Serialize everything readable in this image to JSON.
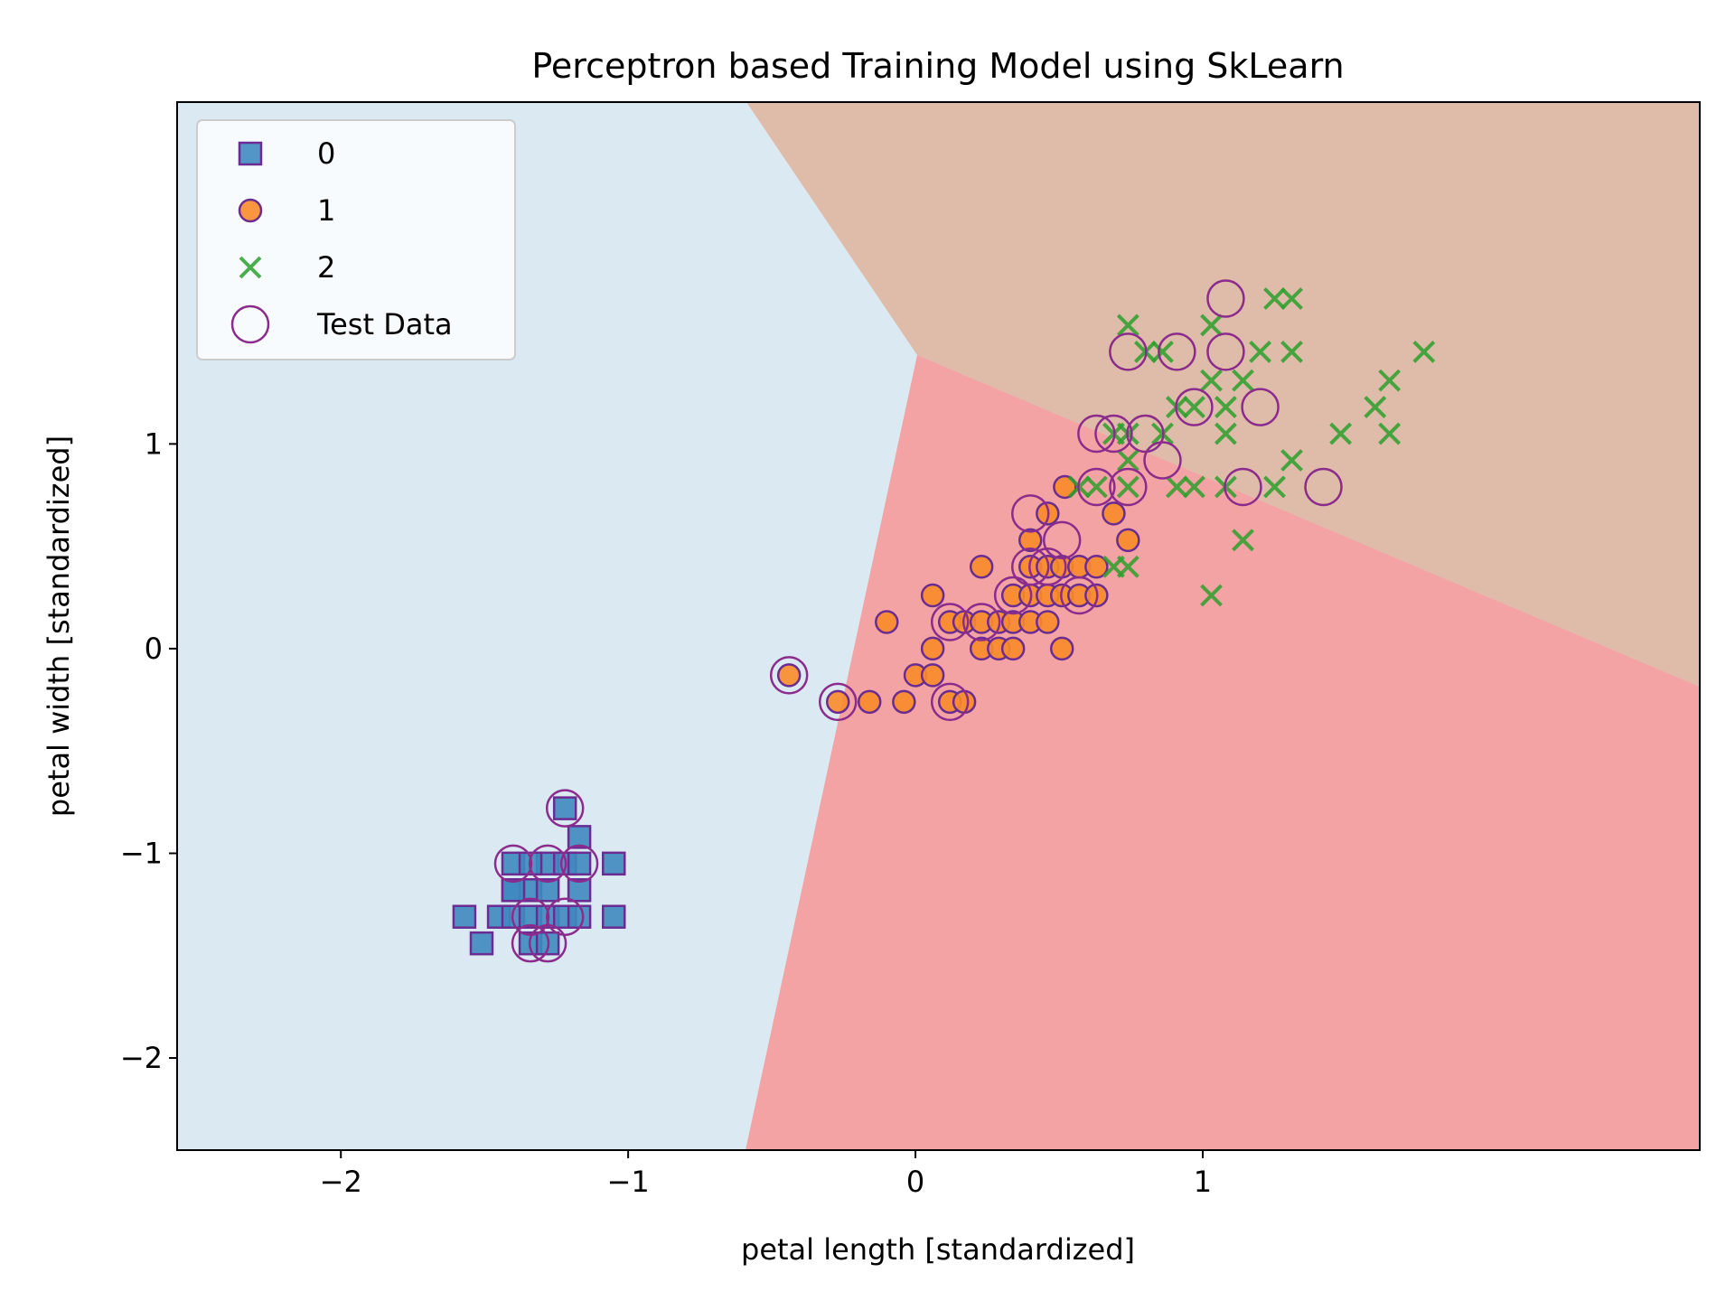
{
  "chart_data": {
    "type": "scatter",
    "title": "Perceptron based Training Model using SkLearn",
    "xlabel": "petal length [standardized]",
    "ylabel": "petal width [standardized]",
    "xlim": [
      -2.57,
      2.73
    ],
    "ylim": [
      -2.45,
      2.67
    ],
    "xticks": [
      -2,
      -1,
      0,
      1
    ],
    "yticks": [
      -2,
      -1,
      0,
      1
    ],
    "xtick_labels": [
      "−2",
      "−1",
      "0",
      "1"
    ],
    "ytick_labels": [
      "−2",
      "−1",
      "0",
      "1"
    ],
    "grid": false,
    "legend_placement": "top-left",
    "regions": [
      {
        "class": "0",
        "color": "#dbe9f3"
      },
      {
        "class": "1",
        "color": "#f3a3a4"
      },
      {
        "class": "2",
        "color": "#dfbba9"
      }
    ],
    "series": [
      {
        "name": "0",
        "marker": "square",
        "color": "#3f89c0",
        "edge": "#6a2c91",
        "points": [
          [
            -1.57,
            -1.31
          ],
          [
            -1.51,
            -1.44
          ],
          [
            -1.45,
            -1.31
          ],
          [
            -1.4,
            -1.18
          ],
          [
            -1.4,
            -1.31
          ],
          [
            -1.4,
            -1.05
          ],
          [
            -1.34,
            -1.31
          ],
          [
            -1.34,
            -1.18
          ],
          [
            -1.34,
            -1.44
          ],
          [
            -1.28,
            -1.31
          ],
          [
            -1.28,
            -1.05
          ],
          [
            -1.28,
            -1.44
          ],
          [
            -1.28,
            -1.18
          ],
          [
            -1.22,
            -1.31
          ],
          [
            -1.22,
            -1.05
          ],
          [
            -1.22,
            -0.78
          ],
          [
            -1.17,
            -1.05
          ],
          [
            -1.17,
            -1.18
          ],
          [
            -1.17,
            -0.92
          ],
          [
            -1.17,
            -1.31
          ],
          [
            -1.05,
            -1.05
          ],
          [
            -1.05,
            -1.31
          ],
          [
            -1.4,
            -1.18
          ],
          [
            -1.34,
            -1.05
          ]
        ]
      },
      {
        "name": "1",
        "marker": "circle",
        "color": "#f98b2a",
        "edge": "#6a2c91",
        "points": [
          [
            -0.44,
            -0.13
          ],
          [
            -0.27,
            -0.26
          ],
          [
            -0.16,
            -0.26
          ],
          [
            -0.1,
            0.13
          ],
          [
            -0.04,
            -0.26
          ],
          [
            0.0,
            -0.13
          ],
          [
            0.06,
            0.0
          ],
          [
            0.06,
            -0.13
          ],
          [
            0.06,
            0.26
          ],
          [
            0.12,
            0.13
          ],
          [
            0.12,
            -0.26
          ],
          [
            0.17,
            0.13
          ],
          [
            0.17,
            -0.26
          ],
          [
            0.23,
            0.4
          ],
          [
            0.23,
            0.13
          ],
          [
            0.23,
            0.0
          ],
          [
            0.29,
            0.13
          ],
          [
            0.29,
            0.0
          ],
          [
            0.34,
            0.26
          ],
          [
            0.34,
            0.13
          ],
          [
            0.34,
            0.0
          ],
          [
            0.4,
            0.13
          ],
          [
            0.4,
            0.26
          ],
          [
            0.4,
            0.4
          ],
          [
            0.4,
            0.53
          ],
          [
            0.46,
            0.4
          ],
          [
            0.46,
            0.13
          ],
          [
            0.46,
            0.26
          ],
          [
            0.51,
            0.0
          ],
          [
            0.51,
            0.26
          ],
          [
            0.51,
            0.4
          ],
          [
            0.57,
            0.26
          ],
          [
            0.57,
            0.4
          ],
          [
            0.63,
            0.4
          ],
          [
            0.63,
            0.26
          ],
          [
            0.69,
            0.66
          ],
          [
            0.74,
            0.53
          ],
          [
            0.46,
            0.66
          ],
          [
            0.52,
            0.79
          ]
        ]
      },
      {
        "name": "2",
        "marker": "x",
        "color": "#2ca02c",
        "edge": "#2ca02c",
        "points": [
          [
            0.57,
            0.79
          ],
          [
            0.63,
            0.79
          ],
          [
            0.69,
            1.05
          ],
          [
            0.69,
            0.4
          ],
          [
            0.74,
            0.4
          ],
          [
            0.74,
            0.92
          ],
          [
            0.74,
            1.05
          ],
          [
            0.74,
            1.58
          ],
          [
            0.74,
            0.79
          ],
          [
            0.8,
            1.45
          ],
          [
            0.86,
            1.45
          ],
          [
            0.91,
            1.18
          ],
          [
            0.91,
            0.79
          ],
          [
            0.97,
            1.18
          ],
          [
            0.97,
            0.79
          ],
          [
            1.03,
            0.26
          ],
          [
            1.03,
            1.31
          ],
          [
            1.03,
            1.58
          ],
          [
            1.08,
            1.05
          ],
          [
            1.08,
            0.79
          ],
          [
            1.08,
            1.18
          ],
          [
            1.14,
            0.53
          ],
          [
            1.14,
            1.31
          ],
          [
            1.2,
            1.45
          ],
          [
            1.25,
            0.79
          ],
          [
            1.25,
            1.71
          ],
          [
            1.31,
            0.92
          ],
          [
            1.31,
            1.45
          ],
          [
            1.31,
            1.71
          ],
          [
            1.48,
            1.05
          ],
          [
            1.6,
            1.18
          ],
          [
            1.65,
            1.05
          ],
          [
            1.65,
            1.31
          ],
          [
            1.77,
            1.45
          ],
          [
            0.86,
            1.05
          ]
        ]
      }
    ],
    "test_data": {
      "name": "Test Data",
      "marker": "open-circle",
      "edge": "#8b2c8d",
      "points": [
        [
          -1.4,
          -1.05
        ],
        [
          -1.34,
          -1.44
        ],
        [
          -1.28,
          -1.44
        ],
        [
          -1.28,
          -1.05
        ],
        [
          -1.22,
          -0.78
        ],
        [
          -1.22,
          -1.31
        ],
        [
          -1.17,
          -1.05
        ],
        [
          -1.34,
          -1.31
        ],
        [
          -0.44,
          -0.13
        ],
        [
          -0.27,
          -0.26
        ],
        [
          0.12,
          -0.26
        ],
        [
          0.12,
          0.13
        ],
        [
          0.23,
          0.13
        ],
        [
          0.34,
          0.26
        ],
        [
          0.4,
          0.66
        ],
        [
          0.4,
          0.4
        ],
        [
          0.46,
          0.4
        ],
        [
          0.51,
          0.53
        ],
        [
          0.57,
          0.26
        ],
        [
          0.63,
          1.05
        ],
        [
          0.63,
          0.79
        ],
        [
          0.69,
          1.05
        ],
        [
          0.74,
          0.79
        ],
        [
          0.74,
          1.45
        ],
        [
          0.8,
          1.05
        ],
        [
          0.86,
          0.92
        ],
        [
          0.91,
          1.45
        ],
        [
          0.97,
          1.18
        ],
        [
          1.08,
          1.45
        ],
        [
          1.08,
          1.71
        ],
        [
          1.14,
          0.79
        ],
        [
          1.2,
          1.18
        ],
        [
          1.42,
          0.79
        ]
      ]
    }
  }
}
